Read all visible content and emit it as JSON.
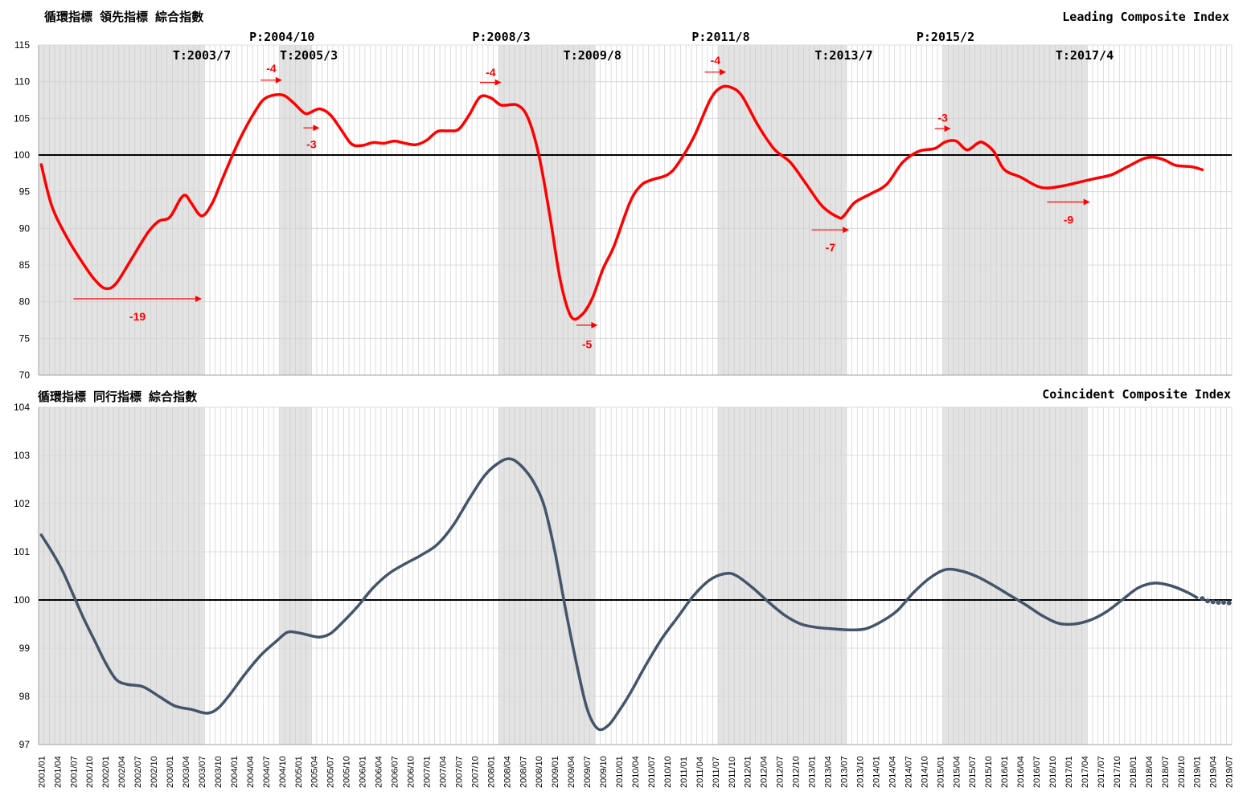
{
  "chart_data": [
    {
      "type": "line",
      "title_left": "循環指標 領先指標 綜合指數",
      "title_right": "Leading Composite Index",
      "ylim": [
        70,
        115
      ],
      "yticks": [
        "70",
        "75",
        "80",
        "85",
        "90",
        "95",
        "100",
        "105",
        "110",
        "115"
      ],
      "reference_line": 100,
      "grid": "vertical monthly",
      "series": [
        {
          "color": "#ff0000",
          "points": [
            [
              "2001/01",
              98.7
            ],
            [
              "2001/03",
              93.0
            ],
            [
              "2001/06",
              88.5
            ],
            [
              "2001/09",
              85.0
            ],
            [
              "2001/11",
              83.0
            ],
            [
              "2002/01",
              81.8
            ],
            [
              "2002/03",
              82.5
            ],
            [
              "2002/06",
              86.0
            ],
            [
              "2002/09",
              89.5
            ],
            [
              "2002/11",
              91.0
            ],
            [
              "2003/01",
              91.5
            ],
            [
              "2003/03",
              94.0
            ],
            [
              "2003/04",
              94.5
            ],
            [
              "2003/05",
              93.5
            ],
            [
              "2003/07",
              91.7
            ],
            [
              "2003/09",
              93.5
            ],
            [
              "2003/11",
              97.0
            ],
            [
              "2004/02",
              102.0
            ],
            [
              "2004/05",
              106.0
            ],
            [
              "2004/07",
              107.8
            ],
            [
              "2004/10",
              108.2
            ],
            [
              "2004/12",
              107.2
            ],
            [
              "2005/02",
              105.8
            ],
            [
              "2005/03",
              105.7
            ],
            [
              "2005/05",
              106.3
            ],
            [
              "2005/07",
              105.5
            ],
            [
              "2005/09",
              103.5
            ],
            [
              "2005/11",
              101.5
            ],
            [
              "2006/01",
              101.3
            ],
            [
              "2006/03",
              101.7
            ],
            [
              "2006/05",
              101.6
            ],
            [
              "2006/07",
              101.9
            ],
            [
              "2006/09",
              101.6
            ],
            [
              "2006/11",
              101.4
            ],
            [
              "2007/01",
              102.0
            ],
            [
              "2007/03",
              103.2
            ],
            [
              "2007/05",
              103.3
            ],
            [
              "2007/07",
              103.5
            ],
            [
              "2007/09",
              105.5
            ],
            [
              "2007/11",
              107.9
            ],
            [
              "2008/01",
              107.8
            ],
            [
              "2008/03",
              106.8
            ],
            [
              "2008/06",
              106.8
            ],
            [
              "2008/08",
              105.0
            ],
            [
              "2008/10",
              100.0
            ],
            [
              "2008/12",
              92.0
            ],
            [
              "2009/02",
              83.0
            ],
            [
              "2009/04",
              78.0
            ],
            [
              "2009/06",
              78.2
            ],
            [
              "2009/08",
              80.5
            ],
            [
              "2009/10",
              84.5
            ],
            [
              "2009/12",
              87.5
            ],
            [
              "2010/03",
              93.5
            ],
            [
              "2010/05",
              95.8
            ],
            [
              "2010/07",
              96.6
            ],
            [
              "2010/10",
              97.3
            ],
            [
              "2010/12",
              98.8
            ],
            [
              "2011/03",
              102.5
            ],
            [
              "2011/06",
              107.5
            ],
            [
              "2011/08",
              109.2
            ],
            [
              "2011/10",
              109.2
            ],
            [
              "2011/12",
              108.0
            ],
            [
              "2012/03",
              104.0
            ],
            [
              "2012/06",
              100.8
            ],
            [
              "2012/09",
              99.0
            ],
            [
              "2012/12",
              96.0
            ],
            [
              "2013/03",
              93.0
            ],
            [
              "2013/06",
              91.5
            ],
            [
              "2013/07",
              91.7
            ],
            [
              "2013/09",
              93.5
            ],
            [
              "2013/12",
              94.7
            ],
            [
              "2014/03",
              96.0
            ],
            [
              "2014/06",
              99.0
            ],
            [
              "2014/09",
              100.5
            ],
            [
              "2014/12",
              100.9
            ],
            [
              "2015/02",
              101.8
            ],
            [
              "2015/04",
              101.9
            ],
            [
              "2015/06",
              100.7
            ],
            [
              "2015/08",
              101.6
            ],
            [
              "2015/09",
              101.7
            ],
            [
              "2015/11",
              100.5
            ],
            [
              "2016/01",
              98.0
            ],
            [
              "2016/04",
              97.0
            ],
            [
              "2016/07",
              95.8
            ],
            [
              "2016/09",
              95.5
            ],
            [
              "2016/12",
              95.8
            ],
            [
              "2017/03",
              96.3
            ],
            [
              "2017/06",
              96.8
            ],
            [
              "2017/09",
              97.3
            ],
            [
              "2017/12",
              98.4
            ],
            [
              "2018/03",
              99.5
            ],
            [
              "2018/05",
              99.7
            ],
            [
              "2018/07",
              99.3
            ],
            [
              "2018/09",
              98.6
            ],
            [
              "2018/12",
              98.4
            ],
            [
              "2019/02",
              98.0
            ]
          ]
        }
      ],
      "shaded_periods": [
        [
          "2001/01",
          "2003/07"
        ],
        [
          "2004/10",
          "2005/03"
        ],
        [
          "2008/03",
          "2009/08"
        ],
        [
          "2011/08",
          "2013/07"
        ],
        [
          "2015/02",
          "2017/04"
        ]
      ],
      "turning_points": [
        {
          "label": "T:2003/7",
          "date": "2003/07",
          "row": 2
        },
        {
          "label": "P:2004/10",
          "date": "2004/10",
          "row": 1
        },
        {
          "label": "T:2005/3",
          "date": "2005/03",
          "row": 2
        },
        {
          "label": "P:2008/3",
          "date": "2008/03",
          "row": 1
        },
        {
          "label": "T:2009/8",
          "date": "2009/08",
          "row": 2
        },
        {
          "label": "P:2011/8",
          "date": "2011/08",
          "row": 1
        },
        {
          "label": "T:2013/7",
          "date": "2013/07",
          "row": 2
        },
        {
          "label": "P:2015/2",
          "date": "2015/02",
          "row": 1
        },
        {
          "label": "T:2017/4",
          "date": "2017/04",
          "row": 2
        }
      ],
      "annotations": [
        {
          "text": "-19",
          "from": "2001/07",
          "to": "2003/07",
          "arrow_y": 80.4,
          "text_y": 78.0
        },
        {
          "text": "-4",
          "from": "2004/06",
          "to": "2004/10",
          "arrow_y": 110.2,
          "text_y": 111.8
        },
        {
          "text": "-3",
          "from": "2005/02",
          "to": "2005/05",
          "arrow_y": 103.7,
          "text_y": 101.5
        },
        {
          "text": "-4",
          "from": "2007/11",
          "to": "2008/03",
          "arrow_y": 109.9,
          "text_y": 111.3
        },
        {
          "text": "-5",
          "from": "2009/05",
          "to": "2009/09",
          "arrow_y": 76.8,
          "text_y": 74.2
        },
        {
          "text": "-4",
          "from": "2011/05",
          "to": "2011/09",
          "arrow_y": 111.3,
          "text_y": 112.9
        },
        {
          "text": "-7",
          "from": "2013/01",
          "to": "2013/08",
          "arrow_y": 89.8,
          "text_y": 87.4
        },
        {
          "text": "-3",
          "from": "2014/12",
          "to": "2015/03",
          "arrow_y": 103.6,
          "text_y": 105.1
        },
        {
          "text": "-9",
          "from": "2016/09",
          "to": "2017/05",
          "arrow_y": 93.6,
          "text_y": 91.2
        }
      ]
    },
    {
      "type": "line",
      "title_left": "循環指標 同行指標 綜合指數",
      "title_right": "Coincident Composite Index",
      "ylim": [
        97,
        104
      ],
      "yticks": [
        "97",
        "98",
        "99",
        "100",
        "101",
        "102",
        "103",
        "104"
      ],
      "reference_line": 100,
      "grid": "vertical monthly",
      "series": [
        {
          "color": "#44546a",
          "points": [
            [
              "2001/01",
              101.35
            ],
            [
              "2001/03",
              101.0
            ],
            [
              "2001/05",
              100.6
            ],
            [
              "2001/07",
              100.1
            ],
            [
              "2001/09",
              99.6
            ],
            [
              "2001/11",
              99.15
            ],
            [
              "2002/01",
              98.7
            ],
            [
              "2002/03",
              98.35
            ],
            [
              "2002/05",
              98.25
            ],
            [
              "2002/08",
              98.2
            ],
            [
              "2002/11",
              98.0
            ],
            [
              "2003/02",
              97.8
            ],
            [
              "2003/05",
              97.73
            ],
            [
              "2003/08",
              97.65
            ],
            [
              "2003/10",
              97.75
            ],
            [
              "2003/12",
              98.0
            ],
            [
              "2004/03",
              98.45
            ],
            [
              "2004/06",
              98.85
            ],
            [
              "2004/09",
              99.15
            ],
            [
              "2004/11",
              99.33
            ],
            [
              "2005/01",
              99.32
            ],
            [
              "2005/03",
              99.27
            ],
            [
              "2005/05",
              99.23
            ],
            [
              "2005/07",
              99.3
            ],
            [
              "2005/09",
              99.5
            ],
            [
              "2005/12",
              99.85
            ],
            [
              "2006/03",
              100.25
            ],
            [
              "2006/06",
              100.55
            ],
            [
              "2006/09",
              100.75
            ],
            [
              "2006/12",
              100.93
            ],
            [
              "2007/03",
              101.15
            ],
            [
              "2007/06",
              101.55
            ],
            [
              "2007/09",
              102.1
            ],
            [
              "2007/12",
              102.6
            ],
            [
              "2008/03",
              102.88
            ],
            [
              "2008/05",
              102.92
            ],
            [
              "2008/07",
              102.75
            ],
            [
              "2008/09",
              102.45
            ],
            [
              "2008/11",
              101.95
            ],
            [
              "2009/01",
              101.0
            ],
            [
              "2009/03",
              99.8
            ],
            [
              "2009/05",
              98.7
            ],
            [
              "2009/07",
              97.75
            ],
            [
              "2009/09",
              97.33
            ],
            [
              "2009/11",
              97.4
            ],
            [
              "2010/01",
              97.7
            ],
            [
              "2010/03",
              98.05
            ],
            [
              "2010/06",
              98.65
            ],
            [
              "2010/09",
              99.2
            ],
            [
              "2010/12",
              99.65
            ],
            [
              "2011/03",
              100.1
            ],
            [
              "2011/06",
              100.42
            ],
            [
              "2011/09",
              100.55
            ],
            [
              "2011/11",
              100.5
            ],
            [
              "2012/02",
              100.25
            ],
            [
              "2012/05",
              99.95
            ],
            [
              "2012/08",
              99.68
            ],
            [
              "2012/11",
              99.5
            ],
            [
              "2013/02",
              99.43
            ],
            [
              "2013/05",
              99.4
            ],
            [
              "2013/08",
              99.38
            ],
            [
              "2013/11",
              99.4
            ],
            [
              "2014/02",
              99.55
            ],
            [
              "2014/05",
              99.78
            ],
            [
              "2014/08",
              100.15
            ],
            [
              "2014/11",
              100.45
            ],
            [
              "2015/02",
              100.63
            ],
            [
              "2015/05",
              100.6
            ],
            [
              "2015/08",
              100.48
            ],
            [
              "2015/11",
              100.3
            ],
            [
              "2016/02",
              100.1
            ],
            [
              "2016/05",
              99.9
            ],
            [
              "2016/08",
              99.68
            ],
            [
              "2016/11",
              99.52
            ],
            [
              "2017/02",
              99.5
            ],
            [
              "2017/05",
              99.58
            ],
            [
              "2017/08",
              99.75
            ],
            [
              "2017/11",
              100.0
            ],
            [
              "2018/02",
              100.25
            ],
            [
              "2018/05",
              100.35
            ],
            [
              "2018/08",
              100.3
            ],
            [
              "2018/11",
              100.17
            ],
            [
              "2019/01",
              100.05
            ]
          ],
          "dotted_points": [
            [
              "2019/02",
              100.03
            ],
            [
              "2019/03",
              99.98
            ],
            [
              "2019/04",
              99.96
            ],
            [
              "2019/05",
              99.95
            ],
            [
              "2019/06",
              99.95
            ],
            [
              "2019/07",
              99.94
            ]
          ]
        }
      ],
      "shaded_periods": [
        [
          "2001/01",
          "2003/07"
        ],
        [
          "2004/10",
          "2005/03"
        ],
        [
          "2008/03",
          "2009/08"
        ],
        [
          "2011/08",
          "2013/07"
        ],
        [
          "2015/02",
          "2017/04"
        ]
      ]
    }
  ],
  "x_start": "2001/01",
  "x_end": "2019/07",
  "x_tick_labels_every_months": 3,
  "colors": {
    "leading_line": "#ff0000",
    "coincident_line": "#44546a",
    "shade": "#e3e3e3",
    "grid": "#c8c8c8",
    "reference": "#000000"
  }
}
